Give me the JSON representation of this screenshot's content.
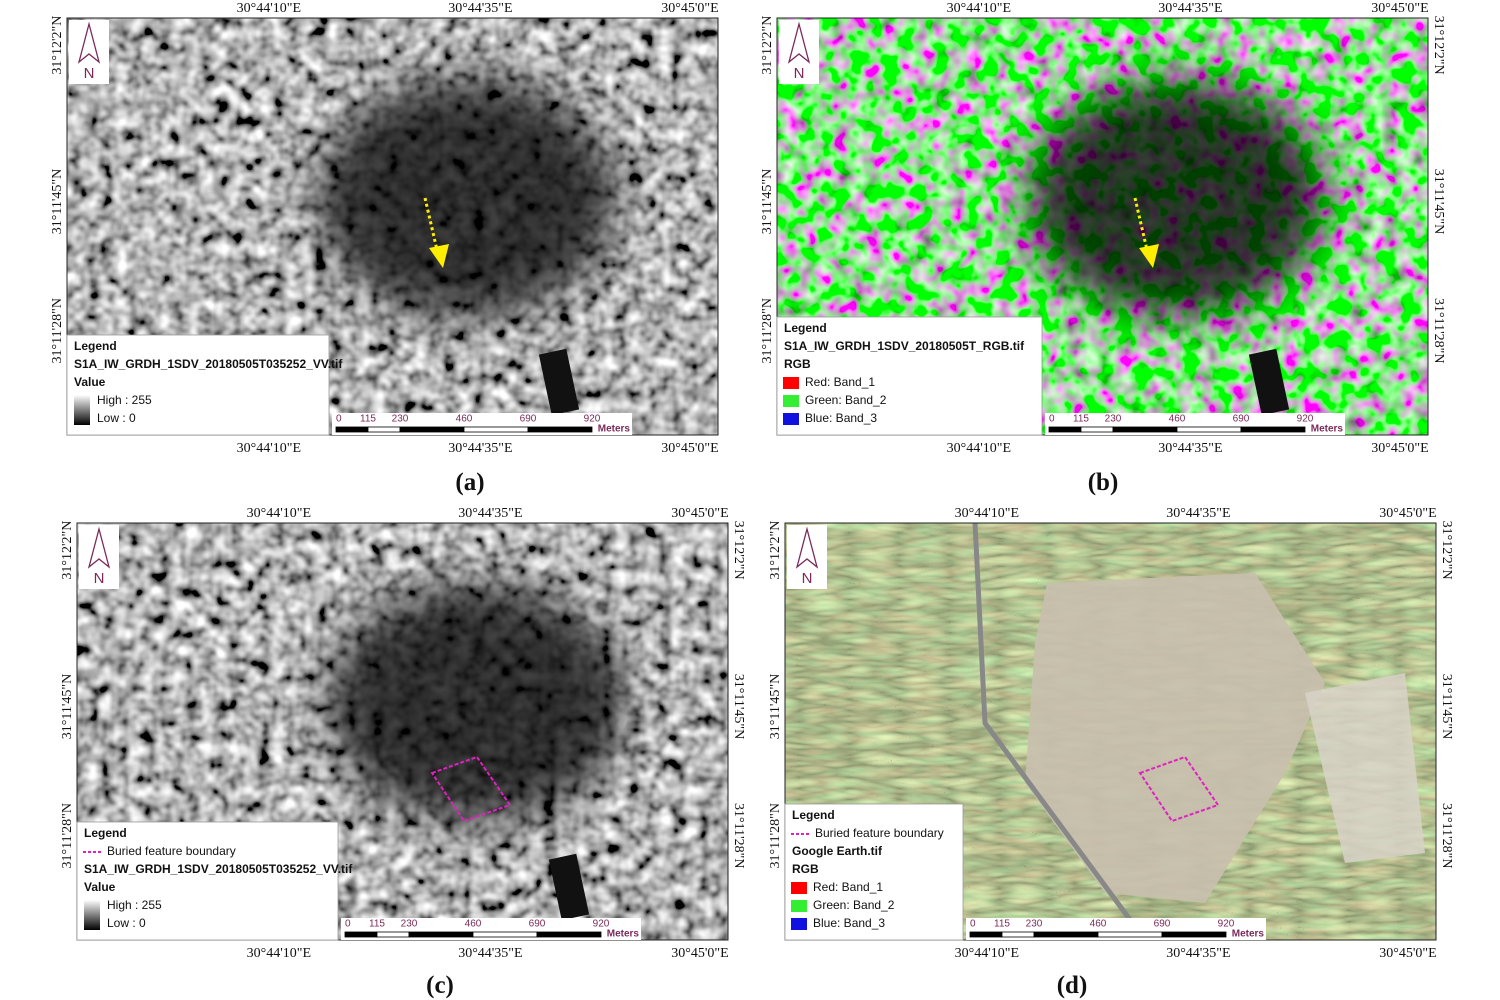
{
  "panels": [
    {
      "label": "(a)",
      "top_lon": [
        "30°44'10\"E",
        "30°44'35\"E",
        "30°45'0\"E"
      ],
      "bottom_lon": [
        "30°44'10\"E",
        "30°44'35\"E",
        "30°45'0\"E"
      ],
      "left_lat": [
        "31°12'2\"N",
        "31°11'45\"N",
        "31°11'28\"N"
      ],
      "right_lat": [],
      "north": "N",
      "legend": [
        {
          "text": "Legend",
          "bold": true
        },
        {
          "text": "S1A_IW_GRDH_1SDV_20180505T035252_VV.tif",
          "bold": true
        },
        {
          "text": "Value",
          "bold": true
        },
        {
          "text": "High : 255",
          "ramp": "high"
        },
        {
          "text": "Low : 0",
          "ramp": "low"
        }
      ],
      "scale": {
        "ticks": [
          0,
          115,
          230,
          460,
          690,
          920
        ],
        "unit": "Meters"
      }
    },
    {
      "label": "(b)",
      "top_lon": [
        "30°44'10\"E",
        "30°44'35\"E",
        "30°45'0\"E"
      ],
      "bottom_lon": [
        "30°44'10\"E",
        "30°44'35\"E",
        "30°45'0\"E"
      ],
      "left_lat": [
        "31°12'2\"N",
        "31°11'45\"N",
        "31°11'28\"N"
      ],
      "right_lat": [
        "31°12'2\"N",
        "31°11'45\"N",
        "31°11'28\"N"
      ],
      "north": "N",
      "legend": [
        {
          "text": "Legend",
          "bold": true
        },
        {
          "text": "S1A_IW_GRDH_1SDV_20180505T_RGB.tif",
          "bold": true
        },
        {
          "text": "RGB",
          "bold": true
        },
        {
          "text": "Red:    Band_1",
          "color": "#ff0000"
        },
        {
          "text": "Green: Band_2",
          "color": "#33ee33"
        },
        {
          "text": "Blue:   Band_3",
          "color": "#1010e0"
        }
      ],
      "scale": {
        "ticks": [
          0,
          115,
          230,
          460,
          690,
          920
        ],
        "unit": "Meters"
      }
    },
    {
      "label": "(c)",
      "top_lon": [
        "30°44'10\"E",
        "30°44'35\"E",
        "30°45'0\"E"
      ],
      "bottom_lon": [
        "30°44'10\"E",
        "30°44'35\"E",
        "30°45'0\"E"
      ],
      "left_lat": [
        "31°12'2\"N",
        "31°11'45\"N",
        "31°11'28\"N"
      ],
      "right_lat": [
        "31°12'2\"N",
        "31°11'45\"N",
        "31°11'28\"N"
      ],
      "north": "N",
      "legend": [
        {
          "text": "Legend",
          "bold": true
        },
        {
          "text": "Buried feature boundary",
          "line_color": "#e020c0"
        },
        {
          "text": "S1A_IW_GRDH_1SDV_20180505T035252_VV.tif",
          "bold": true
        },
        {
          "text": "Value",
          "bold": true
        },
        {
          "text": "High : 255",
          "ramp": "high"
        },
        {
          "text": "Low : 0",
          "ramp": "low"
        }
      ],
      "scale": {
        "ticks": [
          0,
          115,
          230,
          460,
          690,
          920
        ],
        "unit": "Meters"
      }
    },
    {
      "label": "(d)",
      "top_lon": [
        "30°44'10\"E",
        "30°44'35\"E",
        "30°45'0\"E"
      ],
      "bottom_lon": [
        "30°44'10\"E",
        "30°44'35\"E",
        "30°45'0\"E"
      ],
      "left_lat": [
        "31°12'2\"N",
        "31°11'45\"N",
        "31°11'28\"N"
      ],
      "right_lat": [
        "31°12'2\"N",
        "31°11'45\"N",
        "31°11'28\"N"
      ],
      "north": "N",
      "legend": [
        {
          "text": "Legend",
          "bold": true
        },
        {
          "text": "Buried feature boundary",
          "line_color": "#e020c0"
        },
        {
          "text": "Google Earth.tif",
          "bold": true
        },
        {
          "text": "RGB",
          "bold": true
        },
        {
          "text": "Red:    Band_1",
          "color": "#ff0000"
        },
        {
          "text": "Green: Band_2",
          "color": "#33ee33"
        },
        {
          "text": "Blue:   Band_3",
          "color": "#1010e0"
        }
      ],
      "scale": {
        "ticks": [
          0,
          115,
          230,
          460,
          690,
          920
        ],
        "unit": "Meters"
      }
    }
  ]
}
